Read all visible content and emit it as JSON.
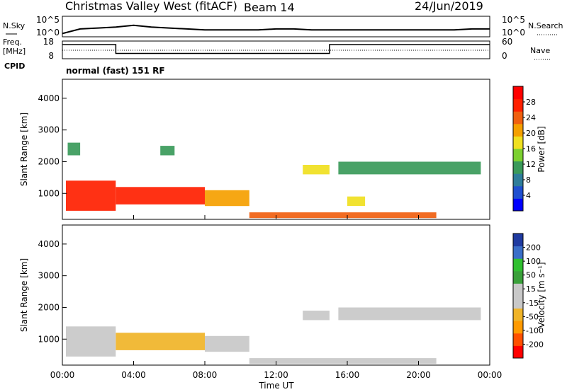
{
  "header": {
    "radar": "Christmas Valley West (fitACF)",
    "beam": "Beam 14",
    "date": "24/Jun/2019"
  },
  "left_labels": {
    "nsky": "N.Sky",
    "freq": "Freq.",
    "mhz": "[MHz]",
    "cpid": "CPID"
  },
  "right_labels": {
    "nsearch": "N.Search",
    "nave": "Nave"
  },
  "cpid_text": "normal (fast) 151 RF",
  "colors": {
    "power": [
      "#0000ff",
      "#1f4fd0",
      "#2e7d9a",
      "#3a9a5a",
      "#7cd030",
      "#f0e020",
      "#f5a000",
      "#f06010",
      "#ff2000",
      "#ff0000"
    ],
    "velocity": [
      "#ff0000",
      "#ff5000",
      "#ff9a00",
      "#f0b428",
      "#c8c8c8",
      "#c8c8c8",
      "#3aa03a",
      "#30c030",
      "#3a6ec8",
      "#1f3aa0"
    ],
    "ground_scatter": "#c8c8c8"
  },
  "chart_data": [
    {
      "type": "line",
      "panel": "noise",
      "left_axis": {
        "label": "N.Sky",
        "ticks": [
          "10^5",
          "10^0"
        ]
      },
      "right_axis": {
        "label": "N.Search",
        "ticks": [
          "10^5",
          "10^0"
        ]
      },
      "x_range_hours": [
        0,
        24
      ],
      "note_series": [
        {
          "name": "N.Sky",
          "x": [
            0,
            1,
            2,
            3,
            4,
            5,
            6,
            7,
            8,
            9,
            10,
            11,
            12,
            13,
            14,
            15,
            16,
            17,
            18,
            19,
            20,
            21,
            22,
            23,
            24
          ],
          "y": [
            0.1,
            0.35,
            0.4,
            0.45,
            0.55,
            0.45,
            0.4,
            0.35,
            0.3,
            0.3,
            0.3,
            0.3,
            0.35,
            0.35,
            0.3,
            0.3,
            0.3,
            0.3,
            0.3,
            0.3,
            0.3,
            0.3,
            0.3,
            0.35,
            0.35
          ]
        }
      ]
    },
    {
      "type": "line",
      "panel": "frequency",
      "left_axis": {
        "label": "Freq. [MHz]",
        "ticks": [
          "18",
          "8"
        ]
      },
      "right_axis": {
        "label": "Nave",
        "ticks": [
          "60",
          "0"
        ]
      },
      "series": [
        {
          "name": "Freq.",
          "x": [
            0,
            3,
            3,
            15,
            15,
            24
          ],
          "y": [
            16,
            16,
            11,
            11,
            16,
            16
          ]
        }
      ]
    },
    {
      "type": "heatmap",
      "panel": "power",
      "ylabel": "Slant Range [km]",
      "yticks": [
        1000,
        2000,
        3000,
        4000
      ],
      "ylim": [
        180,
        4600
      ],
      "xlim": [
        0,
        24
      ],
      "colorbar": {
        "label": "Power [dB]",
        "ticks": [
          4,
          8,
          12,
          16,
          20,
          24,
          28
        ],
        "range": [
          0,
          32
        ]
      },
      "regions": [
        {
          "t0": 0.2,
          "t1": 3.0,
          "r0": 450,
          "r1": 1400,
          "val": 28
        },
        {
          "t0": 3.0,
          "t1": 8.0,
          "r0": 650,
          "r1": 1200,
          "val": 26
        },
        {
          "t0": 8.0,
          "t1": 10.5,
          "r0": 600,
          "r1": 1100,
          "val": 20
        },
        {
          "t0": 10.5,
          "t1": 21.0,
          "r0": 220,
          "r1": 400,
          "val": 25
        },
        {
          "t0": 0.3,
          "t1": 1.0,
          "r0": 2200,
          "r1": 2600,
          "val": 12
        },
        {
          "t0": 5.5,
          "t1": 6.3,
          "r0": 2200,
          "r1": 2500,
          "val": 12
        },
        {
          "t0": 13.5,
          "t1": 15.0,
          "r0": 1600,
          "r1": 1900,
          "val": 18
        },
        {
          "t0": 15.5,
          "t1": 23.5,
          "r0": 1600,
          "r1": 2000,
          "val": 12
        },
        {
          "t0": 16.0,
          "t1": 17.0,
          "r0": 600,
          "r1": 900,
          "val": 18
        }
      ]
    },
    {
      "type": "heatmap",
      "panel": "velocity",
      "ylabel": "Slant Range [km]",
      "yticks": [
        1000,
        2000,
        3000,
        4000
      ],
      "ylim": [
        180,
        4600
      ],
      "xlim": [
        0,
        24
      ],
      "xticks": [
        "00:00",
        "04:00",
        "08:00",
        "12:00",
        "16:00",
        "20:00",
        "00:00"
      ],
      "xlabel": "Time UT",
      "colorbar": {
        "label": "Velocity [m s⁻¹]",
        "ticks": [
          -200,
          -100,
          -50,
          -15,
          15,
          50,
          100,
          200
        ]
      },
      "regions": [
        {
          "t0": 0.2,
          "t1": 3.0,
          "r0": 450,
          "r1": 1400,
          "val": 0
        },
        {
          "t0": 3.0,
          "t1": 8.0,
          "r0": 650,
          "r1": 1200,
          "val": -40
        },
        {
          "t0": 8.0,
          "t1": 10.5,
          "r0": 600,
          "r1": 1100,
          "val": 0
        },
        {
          "t0": 10.5,
          "t1": 21.0,
          "r0": 220,
          "r1": 400,
          "val": 40
        },
        {
          "t0": 13.5,
          "t1": 15.0,
          "r0": 1600,
          "r1": 1900,
          "val": 0
        },
        {
          "t0": 15.5,
          "t1": 23.5,
          "r0": 1600,
          "r1": 2000,
          "val": 0
        }
      ]
    }
  ]
}
